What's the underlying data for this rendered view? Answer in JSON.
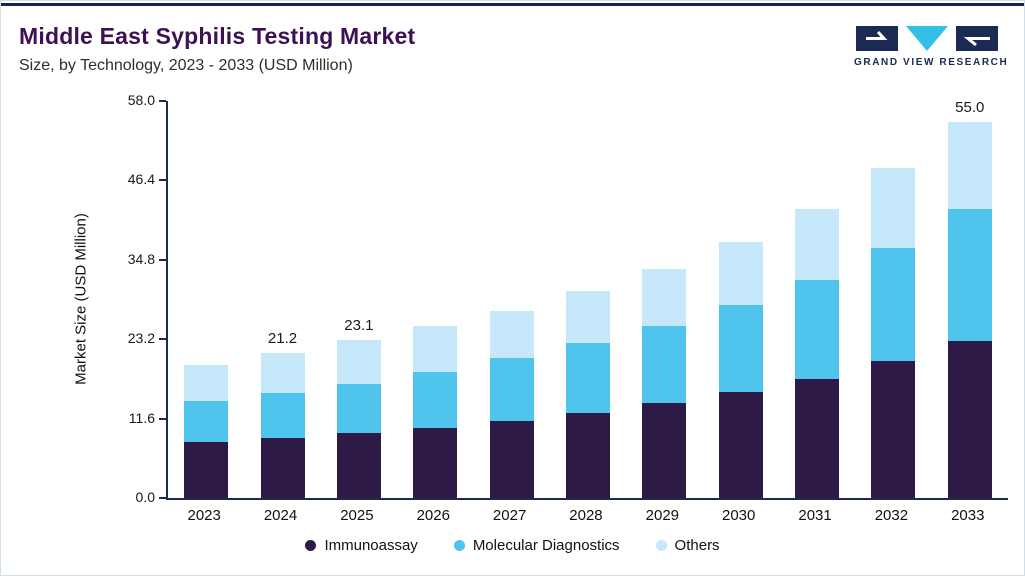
{
  "header": {
    "title": "Middle East Syphilis Testing Market",
    "subtitle": "Size, by Technology, 2023 - 2033 (USD Million)"
  },
  "logo": {
    "brand_name": "GRAND VIEW RESEARCH",
    "navy": "#1b2a52",
    "cyan": "#33bfe7"
  },
  "chart_data": {
    "type": "bar",
    "stacked": true,
    "title": "Middle East Syphilis Testing Market Size, by Technology, 2023 - 2033 (USD Million)",
    "xlabel": "",
    "ylabel": "Market Size (USD Million)",
    "ylim": [
      0,
      58
    ],
    "ytick_labels": [
      "0.0",
      "11.6",
      "23.2",
      "34.8",
      "46.4",
      "58.0"
    ],
    "grid": false,
    "legend_position": "bottom",
    "categories": [
      "2023",
      "2024",
      "2025",
      "2026",
      "2027",
      "2028",
      "2029",
      "2030",
      "2031",
      "2032",
      "2033"
    ],
    "series": [
      {
        "name": "Immunoassay",
        "color": "#2e1a47",
        "values": [
          8.2,
          8.8,
          9.5,
          10.3,
          11.3,
          12.4,
          13.9,
          15.5,
          17.4,
          20.0,
          22.9
        ]
      },
      {
        "name": "Molecular Diagnostics",
        "color": "#4fc4ec",
        "values": [
          6.0,
          6.6,
          7.2,
          8.1,
          9.1,
          10.2,
          11.3,
          12.7,
          14.4,
          16.6,
          19.3
        ]
      },
      {
        "name": "Others",
        "color": "#c5e9fa",
        "values": [
          5.3,
          5.8,
          6.4,
          6.8,
          7.0,
          7.6,
          8.3,
          9.2,
          10.4,
          11.6,
          12.8
        ]
      }
    ],
    "total_labels": {
      "2024": "21.2",
      "2025": "23.1",
      "2033": "55.0"
    }
  }
}
